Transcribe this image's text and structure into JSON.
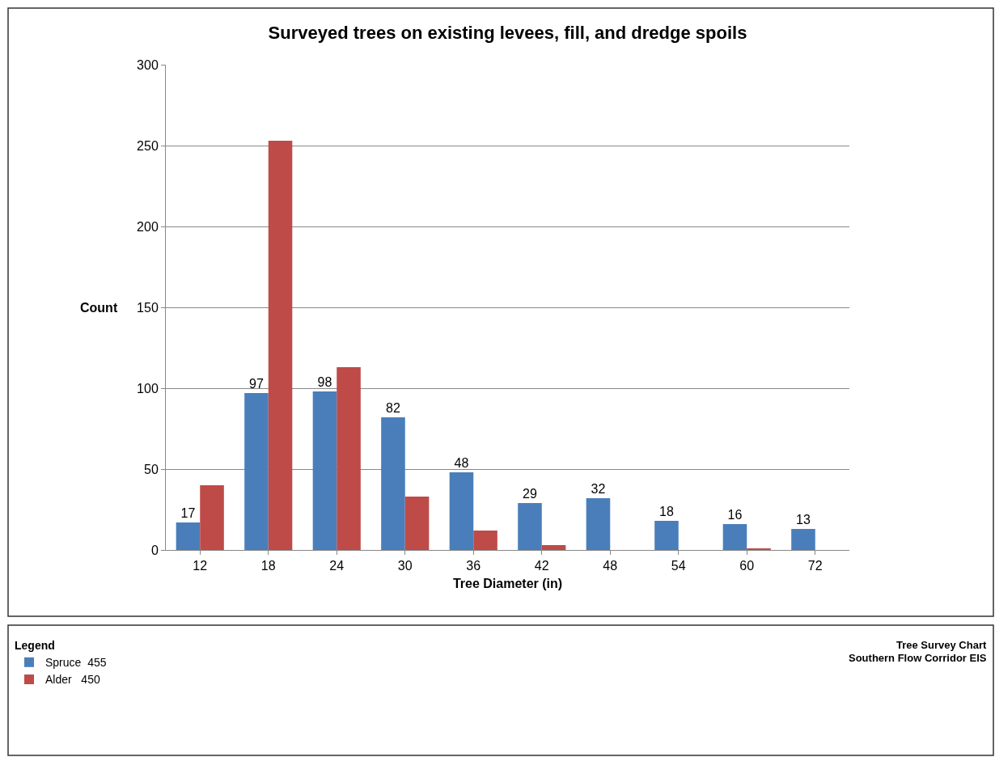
{
  "chart_data": {
    "type": "bar",
    "title": "Surveyed trees on existing levees, fill, and dredge spoils",
    "xlabel": "Tree Diameter (in)",
    "ylabel": "Count",
    "categories": [
      "12",
      "18",
      "24",
      "30",
      "36",
      "42",
      "48",
      "54",
      "60",
      "72"
    ],
    "series": [
      {
        "name": "Spruce  455",
        "color": "#4a7ebb",
        "values": [
          17,
          97,
          98,
          82,
          48,
          29,
          32,
          18,
          16,
          13
        ],
        "value_labels": [
          "17",
          "97",
          "98",
          "82",
          "48",
          "29",
          "32",
          "18",
          "16",
          "13"
        ]
      },
      {
        "name": "Alder   450",
        "color": "#be4b48",
        "values": [
          40,
          253,
          113,
          33,
          12,
          3,
          0,
          0,
          1,
          0
        ]
      }
    ],
    "ylim": [
      0,
      300
    ],
    "yticks": [
      0,
      50,
      100,
      150,
      200,
      250,
      300
    ],
    "grid": "y",
    "legend": "bottom left",
    "legend_title": "Legend",
    "annotations": [
      "Tree Survey Chart",
      "Southern Flow Corridor EIS"
    ]
  }
}
